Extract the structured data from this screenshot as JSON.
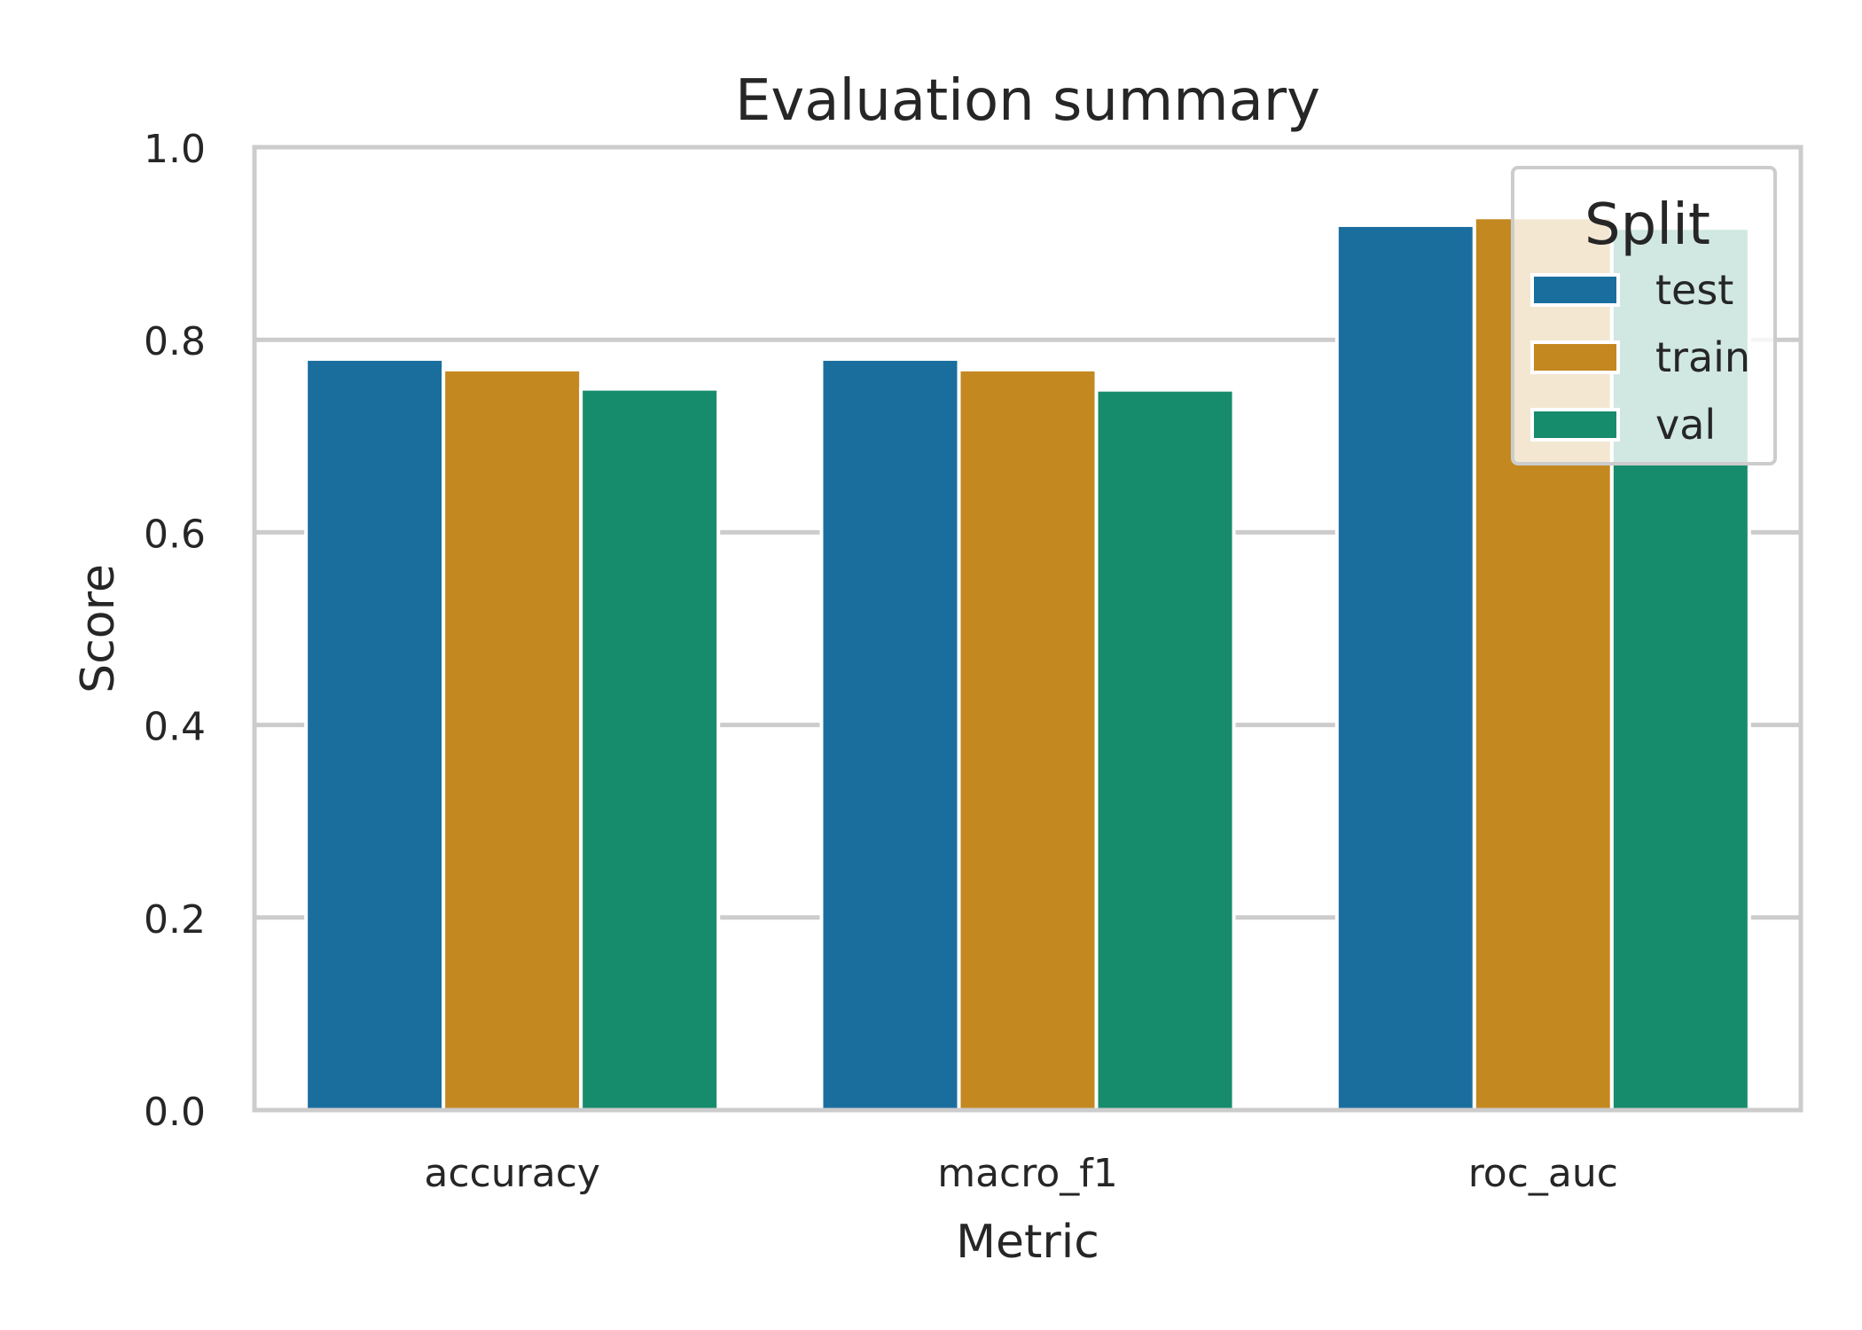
{
  "chart_data": {
    "type": "bar",
    "title": "Evaluation summary",
    "xlabel": "Metric",
    "ylabel": "Score",
    "categories": [
      "accuracy",
      "macro_f1",
      "roc_auc"
    ],
    "series": [
      {
        "name": "test",
        "values": [
          0.78,
          0.78,
          0.919
        ],
        "color": "#1a6e9e"
      },
      {
        "name": "train",
        "values": [
          0.769,
          0.769,
          0.927
        ],
        "color": "#c38820"
      },
      {
        "name": "val",
        "values": [
          0.749,
          0.748,
          0.916
        ],
        "color": "#178c6c"
      }
    ],
    "ylim": [
      0,
      1
    ],
    "yticks": [
      0.0,
      0.2,
      0.4,
      0.6,
      0.8,
      1.0
    ],
    "ytick_labels": [
      "0.0",
      "0.2",
      "0.4",
      "0.6",
      "0.8",
      "1.0"
    ],
    "grid": "horizontal",
    "legend": {
      "title": "Split",
      "placement": "upper right"
    },
    "colors": {
      "background": "#ffffff",
      "grid": "#cccccc",
      "spine": "#cccccc",
      "text": "#262626"
    }
  }
}
